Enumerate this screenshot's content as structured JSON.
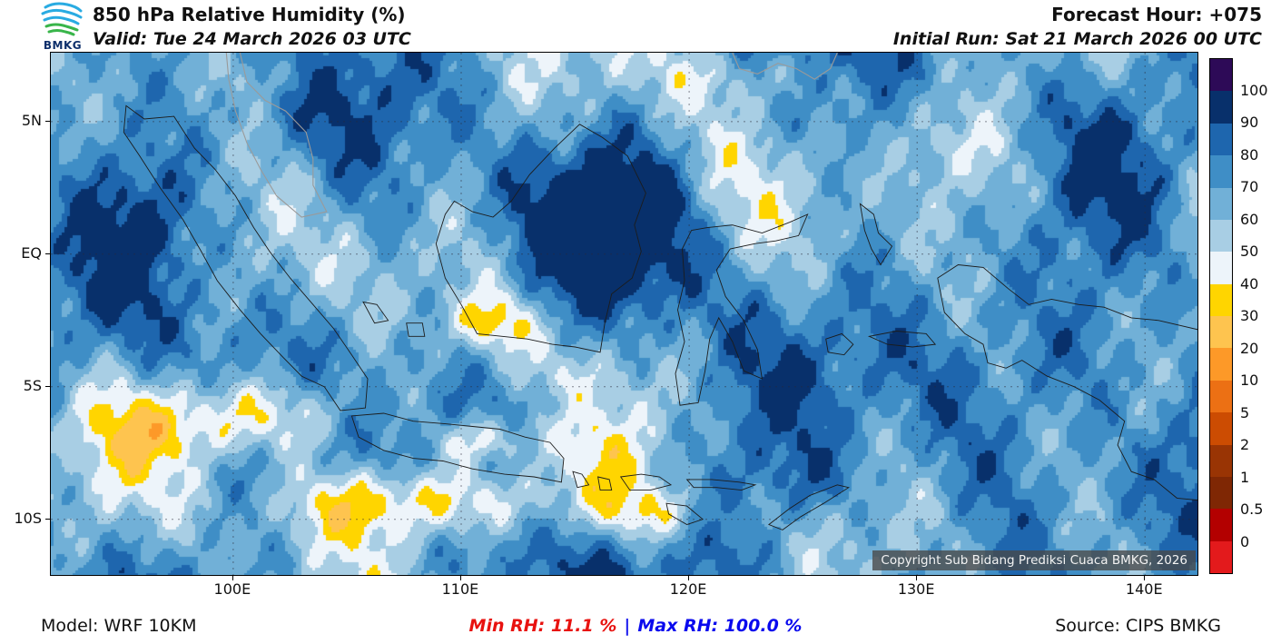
{
  "header": {
    "logo_text": "BMKG",
    "title": "850 hPa Relative Humidity (%)",
    "valid": "Valid: Tue 24 March 2026 03 UTC",
    "forecast_hour": "Forecast Hour: +075",
    "initial_run": "Initial Run: Sat 21 March 2026 00 UTC"
  },
  "map": {
    "copyright": "Copyright Sub Bidang Prediksi Cuaca BMKG, 2026",
    "lon_range": [
      92.0,
      142.3
    ],
    "lat_range": [
      -12.1,
      7.6
    ],
    "x_ticks": [
      {
        "label": "100E",
        "lon": 100
      },
      {
        "label": "110E",
        "lon": 110
      },
      {
        "label": "120E",
        "lon": 120
      },
      {
        "label": "130E",
        "lon": 130
      },
      {
        "label": "140E",
        "lon": 140
      }
    ],
    "y_ticks": [
      {
        "label": "5N",
        "lat": 5
      },
      {
        "label": "EQ",
        "lat": 0
      },
      {
        "label": "5S",
        "lat": -5
      },
      {
        "label": "10S",
        "lat": -10
      }
    ]
  },
  "colorbar": {
    "labels": [
      "100",
      "90",
      "80",
      "70",
      "60",
      "50",
      "40",
      "30",
      "20",
      "10",
      "5",
      "2",
      "1",
      "0.5",
      "0"
    ],
    "levels": [
      0,
      0.5,
      1,
      2,
      5,
      10,
      20,
      30,
      40,
      50,
      60,
      70,
      80,
      90,
      100
    ],
    "segment_colors_top_to_bottom": [
      "#2d0a57",
      "#08306b",
      "#1e66ae",
      "#3f8ec6",
      "#71b0d7",
      "#a8cee4",
      "#edf4fa",
      "#ffd500",
      "#fec44f",
      "#fd9928",
      "#ec7014",
      "#cc4c02",
      "#993404",
      "#7f2704",
      "#b30000",
      "#e31a1c"
    ]
  },
  "footer": {
    "model": "Model: WRF 10KM",
    "min_rh_label": "Min RH:  11.1 %",
    "separator": "|",
    "max_rh_label": "Max RH: 100.0 %",
    "source": "Source: CIPS BMKG",
    "min_color": "#e8120f",
    "max_color": "#0909ee",
    "separator_color": "#2222ee"
  },
  "stats": {
    "min_rh": 11.1,
    "max_rh": 100.0,
    "units": "%"
  }
}
